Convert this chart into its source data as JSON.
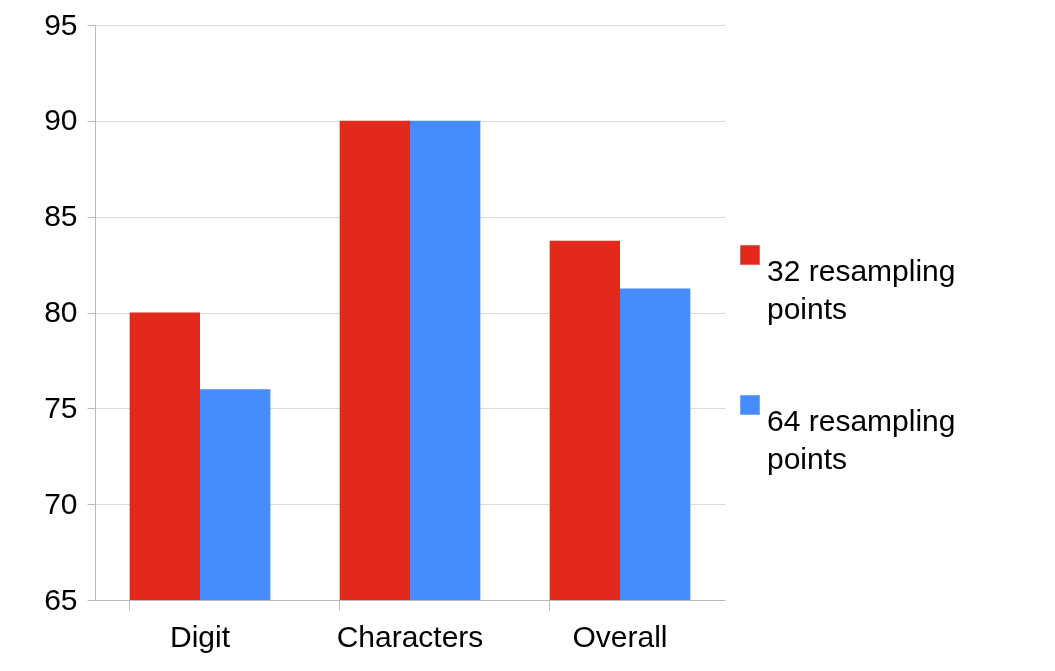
{
  "chart_data": {
    "type": "bar",
    "categories": [
      "Digit",
      "Characters",
      "Overall"
    ],
    "series": [
      {
        "name": "32 resampling points",
        "color": "#e3291b",
        "values": [
          80,
          90,
          83.75
        ]
      },
      {
        "name": "64 resampling points",
        "color": "#468cfc",
        "values": [
          76,
          90,
          81.25
        ]
      }
    ],
    "ylim": [
      65,
      95
    ],
    "yticks": [
      65,
      70,
      75,
      80,
      85,
      90,
      95
    ],
    "grid": "y",
    "legend": "right"
  }
}
